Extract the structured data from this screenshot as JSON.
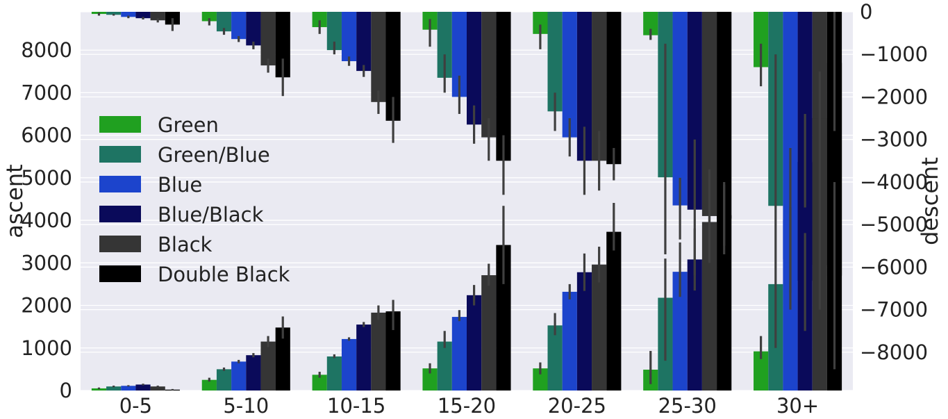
{
  "chart_data": {
    "type": "bar",
    "categories": [
      "0-5",
      "5-10",
      "10-15",
      "15-20",
      "20-25",
      "25-30",
      "30+"
    ],
    "xlabel": "",
    "ylabel": "ascent",
    "y2label": "descent",
    "ylim": [
      0,
      8900
    ],
    "y2lim": [
      -8900,
      0
    ],
    "yticks": [
      0,
      1000,
      2000,
      3000,
      4000,
      5000,
      6000,
      7000,
      8000
    ],
    "y2ticks": [
      0,
      -1000,
      -2000,
      -3000,
      -4000,
      -5000,
      -6000,
      -7000,
      -8000
    ],
    "ytick_labels": [
      "0",
      "1000",
      "2000",
      "3000",
      "4000",
      "5000",
      "6000",
      "7000",
      "8000"
    ],
    "y2tick_labels": [
      "0",
      "−1000",
      "−2000",
      "−3000",
      "−4000",
      "−5000",
      "−6000",
      "−7000",
      "−8000"
    ],
    "grid": true,
    "background": "#eaeaf2",
    "legend_position": "left",
    "series": [
      {
        "name": "Green",
        "color": "#20a020",
        "ascent": [
          50,
          250,
          370,
          520,
          520,
          490,
          920
        ],
        "ascent_err": [
          [
            30,
            70
          ],
          [
            210,
            300
          ],
          [
            300,
            440
          ],
          [
            400,
            640
          ],
          [
            380,
            660
          ],
          [
            150,
            930
          ],
          [
            740,
            1280
          ]
        ],
        "descent": [
          -50,
          -220,
          -360,
          -420,
          -520,
          -550,
          -1300
        ],
        "descent_err": [
          [
            -20,
            -90
          ],
          [
            -150,
            -320
          ],
          [
            -200,
            -520
          ],
          [
            -170,
            -820
          ],
          [
            -300,
            -880
          ],
          [
            -400,
            -660
          ],
          [
            -750,
            -1750
          ]
        ]
      },
      {
        "name": "Green/Blue",
        "color": "#1e7463",
        "ascent": [
          95,
          500,
          800,
          1150,
          1530,
          2180,
          2500
        ],
        "ascent_err": [
          [
            75,
            115
          ],
          [
            460,
            540
          ],
          [
            760,
            850
          ],
          [
            1000,
            1400
          ],
          [
            1300,
            1820
          ],
          [
            700,
            3100
          ],
          [
            1000,
            3200
          ]
        ],
        "descent": [
          -70,
          -460,
          -900,
          -1550,
          -2340,
          -3890,
          -4560
        ],
        "descent_err": [
          [
            -50,
            -90
          ],
          [
            -380,
            -540
          ],
          [
            -700,
            -1000
          ],
          [
            -1000,
            -1900
          ],
          [
            -1900,
            -2800
          ],
          [
            -750,
            -5700
          ],
          [
            -1000,
            -5700
          ]
        ]
      },
      {
        "name": "Blue",
        "color": "#1c44cc",
        "ascent": [
          110,
          680,
          1210,
          1730,
          2320,
          2790,
          4020
        ],
        "ascent_err": [
          [
            95,
            125
          ],
          [
            640,
            720
          ],
          [
            1170,
            1250
          ],
          [
            1630,
            1890
          ],
          [
            2140,
            2500
          ],
          [
            2200,
            3480
          ],
          [
            2300,
            5700
          ]
        ],
        "descent": [
          -120,
          -640,
          -1160,
          -2000,
          -2950,
          -4550,
          -5820
        ],
        "descent_err": [
          [
            -90,
            -150
          ],
          [
            -570,
            -710
          ],
          [
            -1050,
            -1270
          ],
          [
            -1500,
            -2400
          ],
          [
            -2500,
            -3400
          ],
          [
            -3900,
            -5350
          ],
          [
            -4600,
            -7000
          ]
        ]
      },
      {
        "name": "Blue/Black",
        "color": "#0a0a5a",
        "ascent": [
          140,
          830,
          1550,
          2240,
          2780,
          3080,
          5370
        ],
        "ascent_err": [
          [
            120,
            160
          ],
          [
            780,
            880
          ],
          [
            1490,
            1610
          ],
          [
            2000,
            2480
          ],
          [
            2340,
            3220
          ],
          [
            2350,
            3810
          ],
          [
            4300,
            6500
          ]
        ],
        "descent": [
          -150,
          -790,
          -1390,
          -2650,
          -3500,
          -4650,
          -6320
        ],
        "descent_err": [
          [
            -120,
            -180
          ],
          [
            -700,
            -880
          ],
          [
            -1250,
            -1530
          ],
          [
            -2200,
            -3100
          ],
          [
            -2700,
            -4300
          ],
          [
            -3000,
            -6200
          ],
          [
            -5200,
            -7500
          ]
        ]
      },
      {
        "name": "Black",
        "color": "#353535",
        "ascent": [
          95,
          1150,
          1830,
          2710,
          2960,
          3960,
          6400
        ],
        "ascent_err": [
          [
            75,
            115
          ],
          [
            1020,
            1280
          ],
          [
            1660,
            2000
          ],
          [
            2460,
            2980
          ],
          [
            2540,
            3380
          ],
          [
            3000,
            4900
          ],
          [
            4000,
            7500
          ]
        ],
        "descent": [
          -200,
          -1260,
          -2120,
          -2950,
          -3500,
          -4800,
          -5950
        ],
        "descent_err": [
          [
            -150,
            -250
          ],
          [
            -1100,
            -1430
          ],
          [
            -1850,
            -2400
          ],
          [
            -2500,
            -3500
          ],
          [
            -2800,
            -4200
          ],
          [
            -3700,
            -5900
          ],
          [
            -4900,
            -7000
          ]
        ]
      },
      {
        "name": "Double Black",
        "color": "#000000",
        "ascent": [
          20,
          1480,
          1860,
          3420,
          3730,
          4120,
          7700
        ],
        "ascent_err": [
          [
            5,
            35
          ],
          [
            1220,
            1740
          ],
          [
            1420,
            2130
          ],
          [
            2500,
            4340
          ],
          [
            3290,
            4410
          ],
          [
            3400,
            4840
          ],
          [
            6100,
            9000
          ]
        ],
        "descent": [
          -300,
          -1540,
          -2560,
          -3500,
          -3580,
          -4860,
          -6200
        ],
        "descent_err": [
          [
            -150,
            -450
          ],
          [
            -1100,
            -1980
          ],
          [
            -2000,
            -3080
          ],
          [
            -2900,
            -4300
          ],
          [
            -3200,
            -3960
          ],
          [
            -4000,
            -5700
          ],
          [
            -4000,
            -8400
          ]
        ]
      }
    ]
  }
}
